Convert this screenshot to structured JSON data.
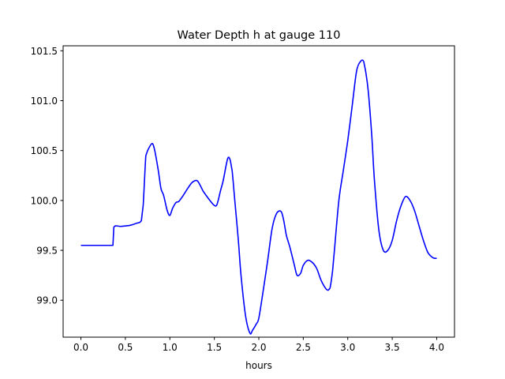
{
  "chart_data": {
    "type": "line",
    "title": "Water Depth h at gauge 110",
    "xlabel": "hours",
    "ylabel": "",
    "xlim": [
      -0.2,
      4.2
    ],
    "ylim": [
      98.63,
      101.55
    ],
    "x_ticks": [
      0.0,
      0.5,
      1.0,
      1.5,
      2.0,
      2.5,
      3.0,
      3.5,
      4.0
    ],
    "x_tick_labels": [
      "0.0",
      "0.5",
      "1.0",
      "1.5",
      "2.0",
      "2.5",
      "3.0",
      "3.5",
      "4.0"
    ],
    "y_ticks": [
      99.0,
      99.5,
      100.0,
      100.5,
      101.0,
      101.5
    ],
    "y_tick_labels": [
      "99.0",
      "99.5",
      "100.0",
      "100.5",
      "101.0",
      "101.5"
    ],
    "grid": false,
    "series": [
      {
        "color": "#0000ff",
        "x": [
          0.0,
          0.1,
          0.2,
          0.3,
          0.35,
          0.36,
          0.37,
          0.45,
          0.55,
          0.62,
          0.68,
          0.7,
          0.73,
          0.75,
          0.8,
          0.83,
          0.87,
          0.9,
          0.93,
          0.97,
          1.0,
          1.03,
          1.07,
          1.1,
          1.15,
          1.2,
          1.25,
          1.3,
          1.33,
          1.37,
          1.4,
          1.45,
          1.5,
          1.53,
          1.57,
          1.6,
          1.65,
          1.68,
          1.7,
          1.73,
          1.77,
          1.8,
          1.85,
          1.9,
          1.93,
          1.97,
          2.0,
          2.05,
          2.1,
          2.15,
          2.2,
          2.25,
          2.28,
          2.31,
          2.35,
          2.4,
          2.43,
          2.47,
          2.5,
          2.55,
          2.6,
          2.65,
          2.7,
          2.75,
          2.78,
          2.8,
          2.83,
          2.85,
          2.9,
          2.95,
          3.0,
          3.05,
          3.1,
          3.15,
          3.18,
          3.2,
          3.23,
          3.27,
          3.3,
          3.35,
          3.4,
          3.45,
          3.5,
          3.55,
          3.6,
          3.65,
          3.7,
          3.75,
          3.8,
          3.85,
          3.9,
          3.95,
          3.98,
          4.0
        ],
        "y": [
          99.55,
          99.55,
          99.55,
          99.55,
          99.55,
          99.55,
          99.73,
          99.74,
          99.75,
          99.77,
          99.8,
          99.95,
          100.45,
          100.5,
          100.57,
          100.5,
          100.3,
          100.12,
          100.05,
          99.9,
          99.85,
          99.92,
          99.98,
          99.99,
          100.05,
          100.12,
          100.18,
          100.2,
          100.17,
          100.1,
          100.06,
          100.0,
          99.95,
          99.96,
          100.1,
          100.2,
          100.42,
          100.4,
          100.3,
          100.0,
          99.6,
          99.25,
          98.85,
          98.67,
          98.7,
          98.76,
          98.82,
          99.1,
          99.4,
          99.72,
          99.87,
          99.89,
          99.8,
          99.65,
          99.53,
          99.35,
          99.25,
          99.27,
          99.35,
          99.4,
          99.38,
          99.32,
          99.2,
          99.12,
          99.1,
          99.12,
          99.3,
          99.5,
          100.0,
          100.3,
          100.6,
          100.95,
          101.3,
          101.4,
          101.39,
          101.3,
          101.1,
          100.65,
          100.2,
          99.7,
          99.5,
          99.5,
          99.6,
          99.8,
          99.95,
          100.04,
          100.0,
          99.9,
          99.75,
          99.6,
          99.48,
          99.43,
          99.42,
          99.42
        ]
      }
    ]
  }
}
